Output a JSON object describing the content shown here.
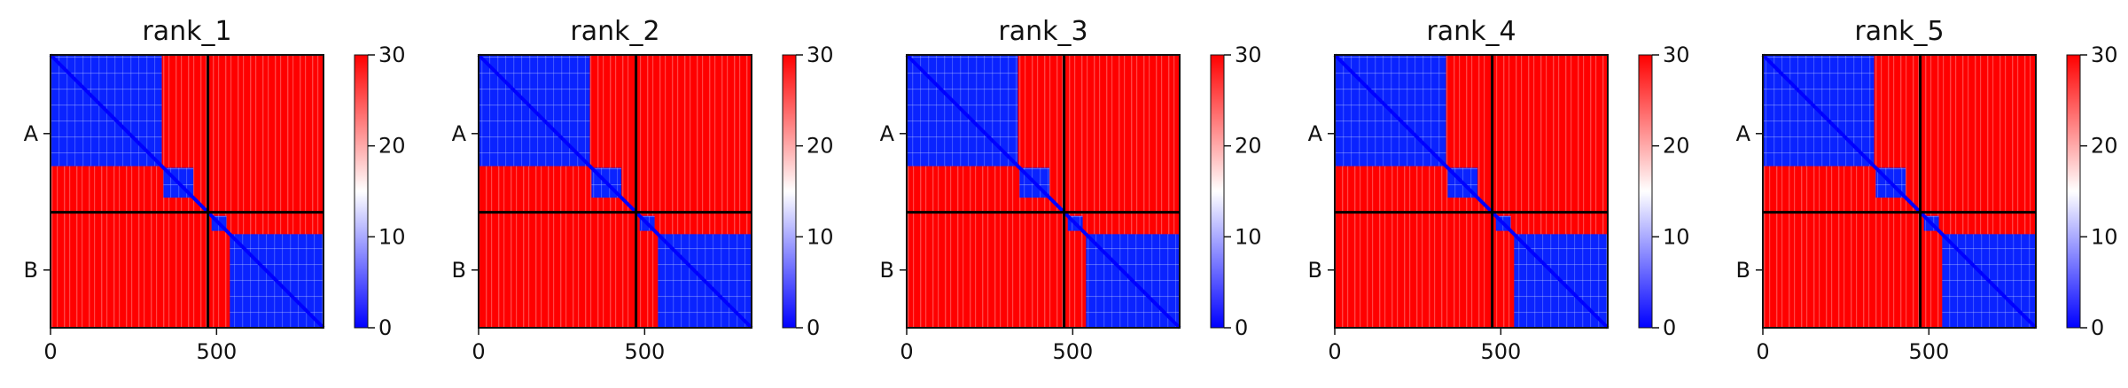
{
  "chart_data": {
    "type": "heatmap",
    "xlim": [
      0,
      822
    ],
    "color_scale": {
      "min": 0,
      "max": 30,
      "colormap": "bwr",
      "low_color": "#0000ff",
      "mid_color": "#ffffff",
      "high_color": "#ff0000",
      "ticks": [
        "0",
        "10",
        "20",
        "30"
      ]
    },
    "x_ticks": [
      {
        "value": 0,
        "label": "0"
      },
      {
        "value": 500,
        "label": "500"
      }
    ],
    "chains": [
      {
        "label": "A",
        "start": 0,
        "end": 474
      },
      {
        "label": "B",
        "start": 474,
        "end": 822
      }
    ],
    "panels": [
      {
        "title": "rank_1"
      },
      {
        "title": "rank_2"
      },
      {
        "title": "rank_3"
      },
      {
        "title": "rank_4"
      },
      {
        "title": "rank_5"
      }
    ]
  }
}
